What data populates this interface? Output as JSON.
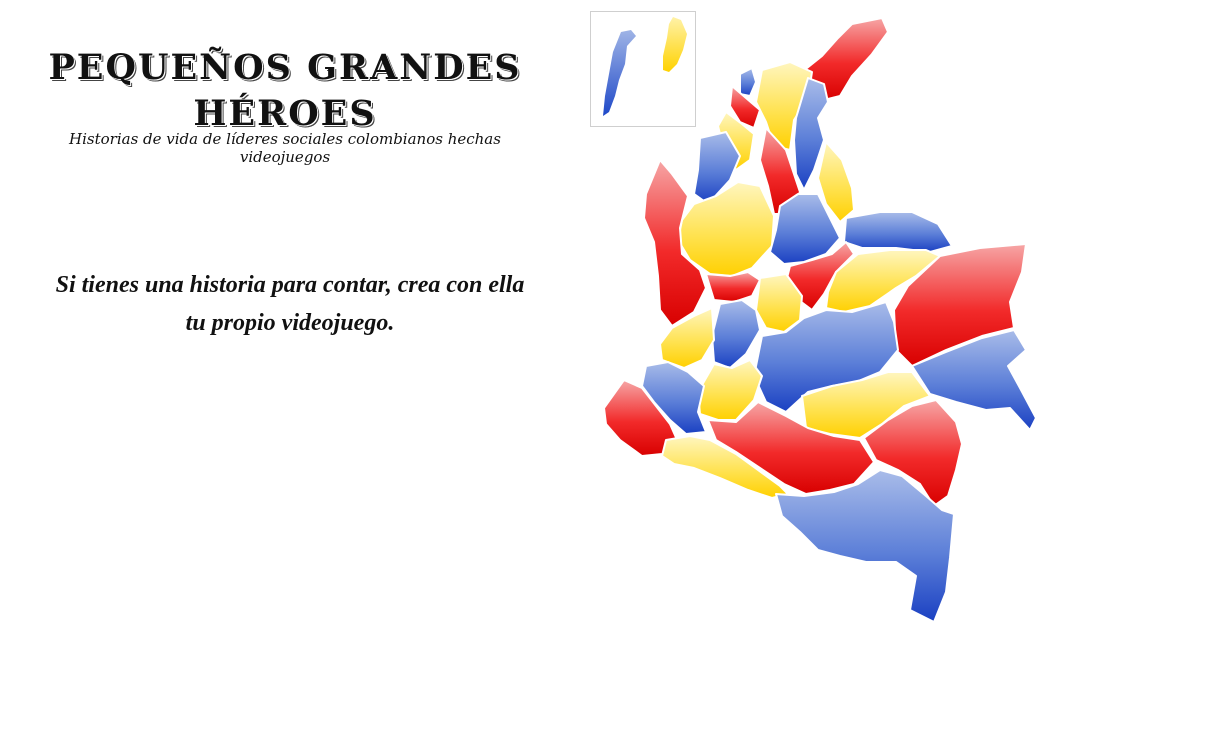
{
  "header": {
    "title_line1": "PEQUEÑOS GRANDES",
    "title_line2": "HÉROES",
    "subtitle": "Historias de vida de líderes sociales colombianos hechas videojuegos"
  },
  "intro": {
    "line1": "Si tienes una historia para contar, crea con ella",
    "line2": "tu propio videojuego."
  },
  "map": {
    "palette": {
      "red": "#e60000",
      "yellow": "#ffd200",
      "blue": "#1e48c8"
    }
  }
}
